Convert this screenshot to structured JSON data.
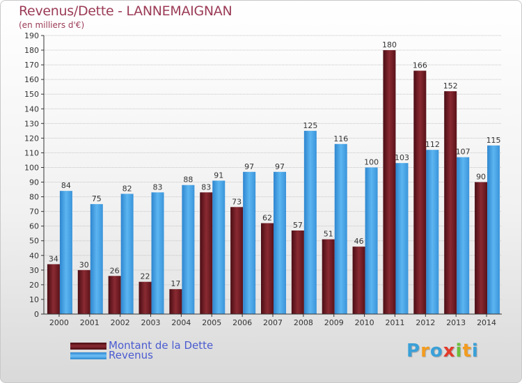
{
  "title": "Revenus/Dette - LANNEMAIGNAN",
  "subtitle": "(en milliers d'€)",
  "logo": [
    "P",
    "r",
    "o",
    "x",
    "i",
    "t",
    "i"
  ],
  "logo_colors": [
    "#3aa0d8",
    "#f39c20",
    "#3aa0d8",
    "#e23b2b",
    "#6cbf3b",
    "#f39c20",
    "#3aa0d8"
  ],
  "colors": {
    "dette": "#7d1f27",
    "revenus": "#4aa6e8",
    "title": "#9b3b56",
    "legend_text": "#4a5bd0"
  },
  "chart_data": {
    "type": "bar",
    "categories": [
      "2000",
      "2001",
      "2002",
      "2003",
      "2004",
      "2005",
      "2006",
      "2007",
      "2008",
      "2009",
      "2010",
      "2011",
      "2012",
      "2013",
      "2014"
    ],
    "series": [
      {
        "name": "Montant de la Dette",
        "values": [
          34,
          30,
          26,
          22,
          17,
          83,
          73,
          62,
          57,
          51,
          46,
          180,
          166,
          152,
          90
        ]
      },
      {
        "name": "Revenus",
        "values": [
          84,
          75,
          82,
          83,
          88,
          91,
          97,
          97,
          125,
          116,
          100,
          103,
          112,
          107,
          115
        ]
      }
    ],
    "ylim": [
      0,
      190
    ],
    "yticks": [
      0,
      10,
      20,
      30,
      40,
      50,
      60,
      70,
      80,
      90,
      100,
      110,
      120,
      130,
      140,
      150,
      160,
      170,
      180,
      190
    ],
    "grid": true,
    "legend_position": "bottom-left"
  }
}
